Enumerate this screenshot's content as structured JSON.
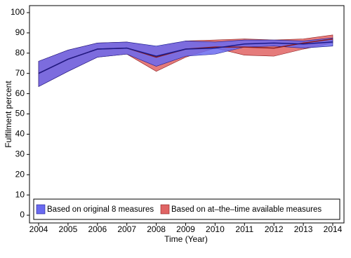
{
  "chart_data": {
    "type": "band-line",
    "x_label": "Time (Year)",
    "y_label": "Fulfilment percent",
    "x": [
      2004,
      2005,
      2006,
      2007,
      2008,
      2009,
      2010,
      2011,
      2012,
      2013,
      2014
    ],
    "xlim": [
      2004,
      2014
    ],
    "xticks": [
      2004,
      2005,
      2006,
      2007,
      2008,
      2009,
      2010,
      2011,
      2012,
      2013,
      2014
    ],
    "ylim": [
      0,
      100
    ],
    "yticks": [
      0,
      10,
      20,
      30,
      40,
      50,
      60,
      70,
      80,
      90,
      100
    ],
    "grid": false,
    "legend": "bottom",
    "series": [
      {
        "name": "Based on at–the–time available measures",
        "color": "#e06464",
        "line_color": "#8b1a1a",
        "values": [
          70,
          77,
          82,
          82.5,
          78,
          82,
          83,
          83,
          82.5,
          85,
          87
        ],
        "lower": [
          63.5,
          71,
          78,
          79.5,
          71,
          78,
          82.5,
          79,
          78.5,
          82,
          85
        ],
        "upper": [
          76,
          81.5,
          85,
          85.5,
          83,
          86,
          86.5,
          87,
          86.5,
          87,
          89
        ]
      },
      {
        "name": "Based on original 8 measures",
        "color": "#6a6af0",
        "line_color": "#1a1a8b",
        "values": [
          70,
          77,
          82,
          82.5,
          78.5,
          82,
          82.5,
          84.5,
          85,
          84.5,
          85.5
        ],
        "lower": [
          63.5,
          71,
          78,
          79.5,
          73.5,
          78.5,
          79.5,
          83,
          83.5,
          82.5,
          83.5
        ],
        "upper": [
          76,
          81.5,
          85,
          85.5,
          83.5,
          86,
          85.5,
          86.5,
          86.5,
          86,
          87.5
        ]
      }
    ]
  }
}
